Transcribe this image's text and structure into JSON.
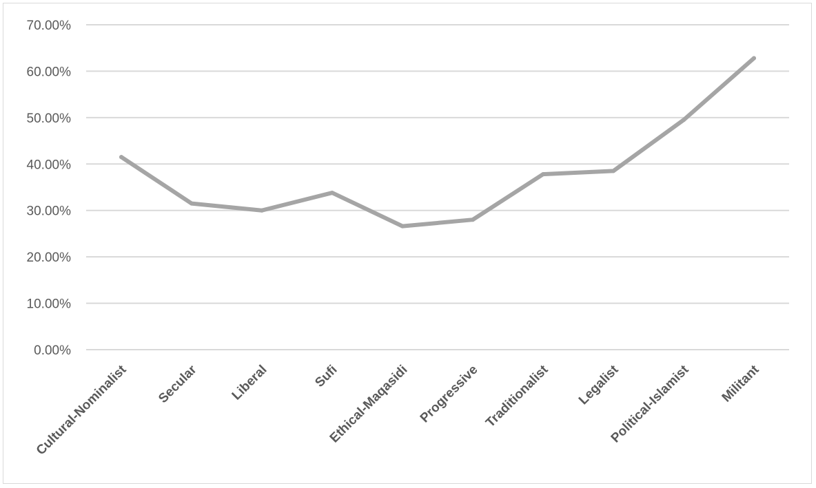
{
  "chart_data": {
    "type": "line",
    "title": "",
    "xlabel": "",
    "ylabel": "",
    "categories": [
      "Cultural-Nominalist",
      "Secular",
      "Liberal",
      "Sufi",
      "Ethical-Maqasidi",
      "Progressive",
      "Traditionalist",
      "Legalist",
      "Political-Islamist",
      "Militant"
    ],
    "series": [
      {
        "values": [
          0.415,
          0.315,
          0.3,
          0.338,
          0.266,
          0.28,
          0.378,
          0.385,
          0.495,
          0.628
        ]
      }
    ],
    "ylim": [
      0,
      0.7
    ],
    "y_ticks": [
      "0.00%",
      "10.00%",
      "20.00%",
      "30.00%",
      "40.00%",
      "50.00%",
      "60.00%",
      "70.00%"
    ],
    "grid": true,
    "legend": "none",
    "colors": {
      "line": "#a5a5a5",
      "grid": "#d9d9d9",
      "text": "#595959",
      "border": "#d9d9d9"
    }
  }
}
